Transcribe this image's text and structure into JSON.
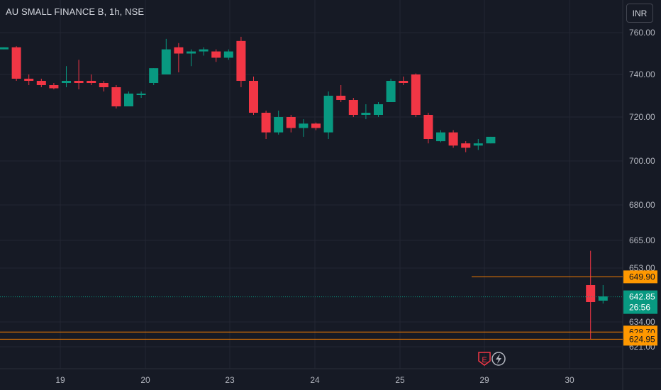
{
  "header": {
    "symbol_title": "AU SMALL FINANCE B, 1h, NSE",
    "currency_button": "INR"
  },
  "colors": {
    "background": "#161a25",
    "up": "#089981",
    "down": "#f23645",
    "level_line": "#f57c00",
    "level_tag": "#ff9800",
    "grid": "#232632"
  },
  "chart_data": {
    "type": "candlestick",
    "title": "AU SMALL FINANCE B, 1h, NSE",
    "x_tick_labels": [
      "19",
      "20",
      "23",
      "24",
      "25",
      "29",
      "30"
    ],
    "y_tick_labels": [
      {
        "value": 760,
        "label": "760.00"
      },
      {
        "value": 740,
        "label": "740.00"
      },
      {
        "value": 720,
        "label": "720.00"
      },
      {
        "value": 700,
        "label": "700.00"
      },
      {
        "value": 680,
        "label": "680.00"
      },
      {
        "value": 665,
        "label": "665.00"
      },
      {
        "value": 653,
        "label": "653.00"
      },
      {
        "value": 634,
        "label": "634.00"
      },
      {
        "value": 621,
        "label": "621.00"
      }
    ],
    "y_range": [
      619,
      767
    ],
    "grid": true,
    "candles": [
      {
        "slot": 0,
        "o": 752,
        "h": 753,
        "l": 752,
        "c": 753
      },
      {
        "slot": 1,
        "o": 753,
        "h": 753.5,
        "l": 737,
        "c": 738
      },
      {
        "slot": 2,
        "o": 738,
        "h": 740,
        "l": 735,
        "c": 737
      },
      {
        "slot": 3,
        "o": 737,
        "h": 738,
        "l": 734,
        "c": 735
      },
      {
        "slot": 4,
        "o": 735,
        "h": 736,
        "l": 733,
        "c": 733.5
      },
      {
        "slot": 5,
        "o": 736,
        "h": 744,
        "l": 734,
        "c": 737
      },
      {
        "slot": 6,
        "o": 737,
        "h": 747,
        "l": 733,
        "c": 736
      },
      {
        "slot": 7,
        "o": 737,
        "h": 740,
        "l": 735,
        "c": 736
      },
      {
        "slot": 8,
        "o": 736,
        "h": 737,
        "l": 732,
        "c": 734
      },
      {
        "slot": 9,
        "o": 734,
        "h": 735,
        "l": 724,
        "c": 725
      },
      {
        "slot": 10,
        "o": 725,
        "h": 732,
        "l": 725,
        "c": 731
      },
      {
        "slot": 11,
        "o": 730.5,
        "h": 732,
        "l": 729,
        "c": 731
      },
      {
        "slot": 12,
        "o": 736,
        "h": 743,
        "l": 735,
        "c": 743
      },
      {
        "slot": 13,
        "o": 740,
        "h": 757,
        "l": 740,
        "c": 752
      },
      {
        "slot": 14,
        "o": 753,
        "h": 755,
        "l": 741,
        "c": 750
      },
      {
        "slot": 15,
        "o": 750,
        "h": 752,
        "l": 744,
        "c": 751
      },
      {
        "slot": 16,
        "o": 751,
        "h": 753,
        "l": 749,
        "c": 752
      },
      {
        "slot": 17,
        "o": 751,
        "h": 752,
        "l": 746,
        "c": 748
      },
      {
        "slot": 18,
        "o": 748,
        "h": 752,
        "l": 747,
        "c": 751
      },
      {
        "slot": 19,
        "o": 756,
        "h": 758,
        "l": 734,
        "c": 737
      },
      {
        "slot": 20,
        "o": 737,
        "h": 739,
        "l": 721,
        "c": 722
      },
      {
        "slot": 21,
        "o": 722,
        "h": 723,
        "l": 710,
        "c": 713
      },
      {
        "slot": 22,
        "o": 713,
        "h": 723,
        "l": 712,
        "c": 720
      },
      {
        "slot": 23,
        "o": 720,
        "h": 721,
        "l": 713,
        "c": 715
      },
      {
        "slot": 24,
        "o": 715,
        "h": 719,
        "l": 711,
        "c": 717
      },
      {
        "slot": 25,
        "o": 717,
        "h": 717.5,
        "l": 714,
        "c": 715
      },
      {
        "slot": 26,
        "o": 713,
        "h": 732,
        "l": 710,
        "c": 730
      },
      {
        "slot": 27,
        "o": 730,
        "h": 735,
        "l": 727,
        "c": 728
      },
      {
        "slot": 28,
        "o": 728,
        "h": 729,
        "l": 720,
        "c": 721
      },
      {
        "slot": 29,
        "o": 721,
        "h": 726,
        "l": 719,
        "c": 722
      },
      {
        "slot": 30,
        "o": 721,
        "h": 727,
        "l": 720,
        "c": 726
      },
      {
        "slot": 31,
        "o": 727,
        "h": 738,
        "l": 727,
        "c": 737
      },
      {
        "slot": 32,
        "o": 737,
        "h": 739,
        "l": 735,
        "c": 736
      },
      {
        "slot": 33,
        "o": 740,
        "h": 740.5,
        "l": 720,
        "c": 721
      },
      {
        "slot": 34,
        "o": 721,
        "h": 722,
        "l": 708,
        "c": 710
      },
      {
        "slot": 35,
        "o": 709,
        "h": 714,
        "l": 708.5,
        "c": 713
      },
      {
        "slot": 36,
        "o": 713,
        "h": 714,
        "l": 706,
        "c": 707
      },
      {
        "slot": 37,
        "o": 708,
        "h": 709,
        "l": 704,
        "c": 706
      },
      {
        "slot": 38,
        "o": 707,
        "h": 710,
        "l": 705,
        "c": 708
      },
      {
        "slot": 39,
        "o": 708,
        "h": 711,
        "l": 708,
        "c": 711
      },
      {
        "slot": 47,
        "o": 647,
        "h": 660.5,
        "l": 625,
        "c": 641
      },
      {
        "slot": 48,
        "o": 641.5,
        "h": 647,
        "l": 640.5,
        "c": 643
      }
    ],
    "horizontal_levels": [
      {
        "value": 649.9,
        "label": "649.90"
      },
      {
        "value": 628.7,
        "label": "628.70"
      },
      {
        "value": 624.95,
        "label": "624.95"
      }
    ],
    "last_price": {
      "value": 642.85,
      "label": "642.85",
      "countdown": "26:56"
    },
    "event_markers": [
      {
        "name": "earnings-icon",
        "text": "E"
      },
      {
        "name": "dividend-flash-icon",
        "text": "⚡"
      }
    ]
  }
}
